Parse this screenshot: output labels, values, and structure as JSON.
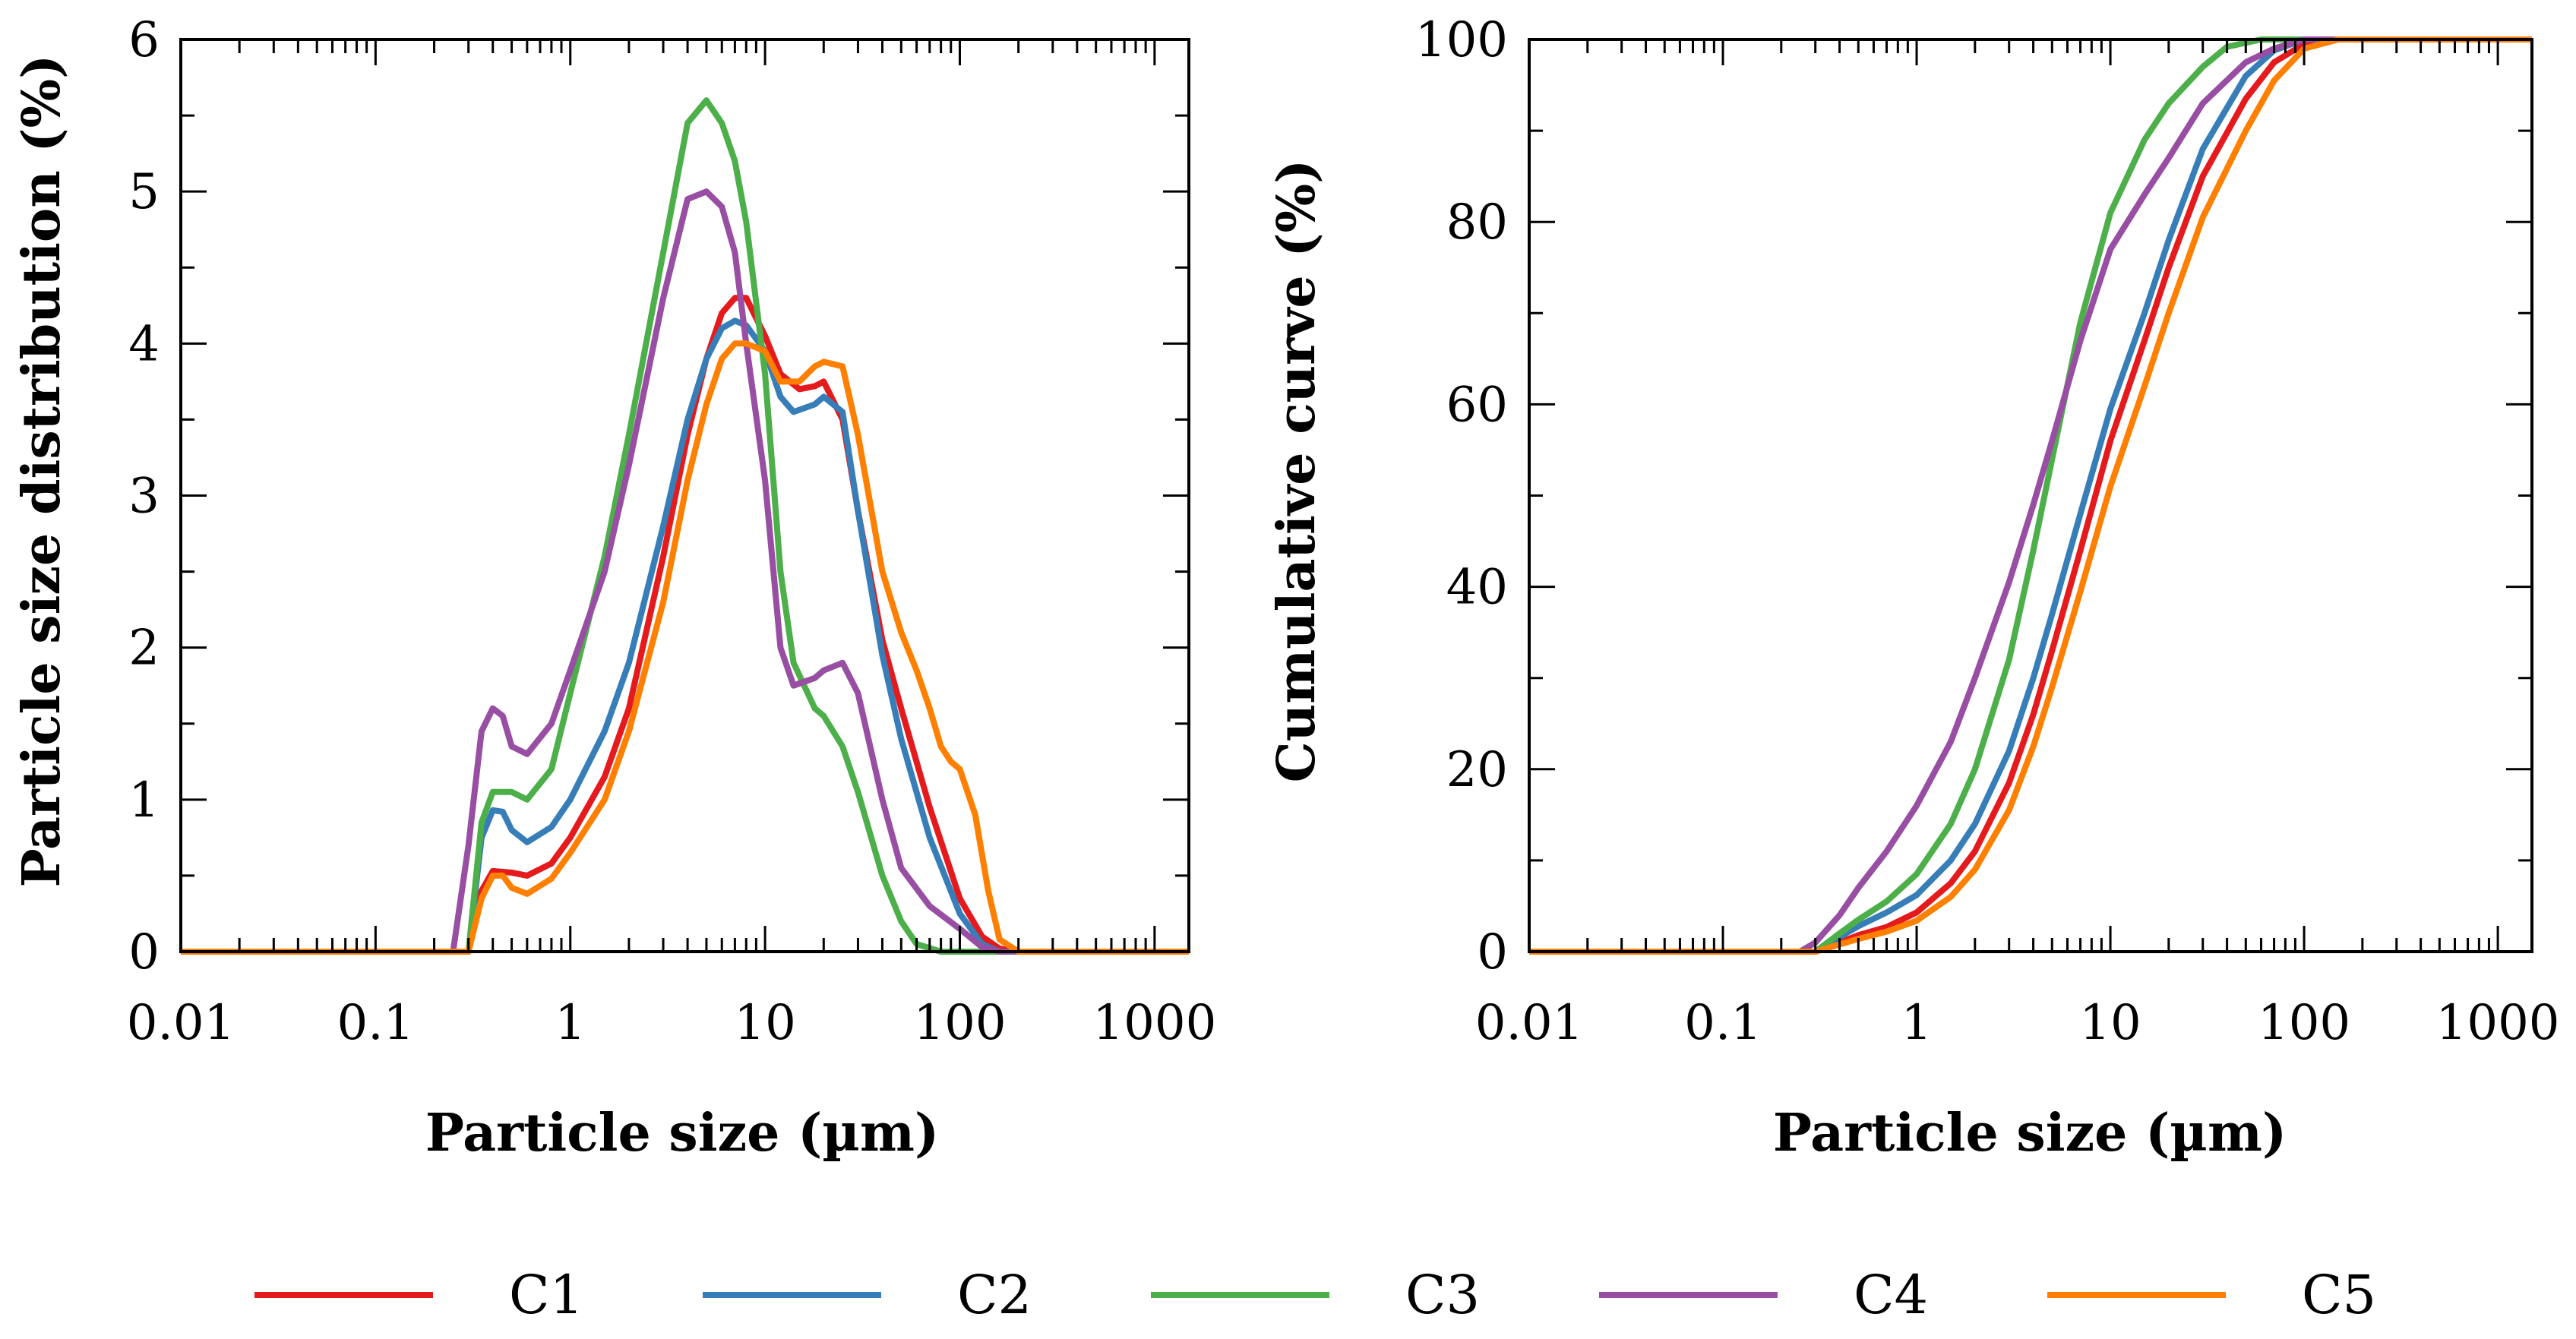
{
  "legend": [
    {
      "name": "C1",
      "color": "#e41a1c"
    },
    {
      "name": "C2",
      "color": "#377eb8"
    },
    {
      "name": "C3",
      "color": "#4daf4a"
    },
    {
      "name": "C4",
      "color": "#984ea3"
    },
    {
      "name": "C5",
      "color": "#ff7f00"
    }
  ],
  "chart_data": [
    {
      "type": "line",
      "title": "",
      "xlabel": "Particle size (µm)",
      "ylabel": "Particle size distribution (%)",
      "xscale": "log",
      "xlim": [
        0.01,
        1500
      ],
      "ylim": [
        0,
        6
      ],
      "xticks": [
        0.01,
        0.1,
        1,
        10,
        100,
        1000
      ],
      "xtick_labels": [
        "0.01",
        "0.1",
        "1",
        "10",
        "100",
        "1000"
      ],
      "yticks": [
        0,
        1,
        2,
        3,
        4,
        5,
        6
      ],
      "ytick_labels": [
        "0",
        "1",
        "2",
        "3",
        "4",
        "5",
        "6"
      ],
      "grid": false,
      "series": [
        {
          "name": "C1",
          "color": "#e41a1c",
          "points": [
            [
              0.01,
              0
            ],
            [
              0.3,
              0
            ],
            [
              0.35,
              0.4
            ],
            [
              0.4,
              0.53
            ],
            [
              0.5,
              0.52
            ],
            [
              0.6,
              0.5
            ],
            [
              0.8,
              0.58
            ],
            [
              1,
              0.75
            ],
            [
              1.5,
              1.15
            ],
            [
              2,
              1.6
            ],
            [
              3,
              2.6
            ],
            [
              4,
              3.4
            ],
            [
              5,
              3.9
            ],
            [
              6,
              4.2
            ],
            [
              7,
              4.3
            ],
            [
              8,
              4.3
            ],
            [
              10,
              4.05
            ],
            [
              12,
              3.8
            ],
            [
              15,
              3.7
            ],
            [
              18,
              3.72
            ],
            [
              20,
              3.75
            ],
            [
              25,
              3.5
            ],
            [
              30,
              2.9
            ],
            [
              40,
              2.05
            ],
            [
              50,
              1.6
            ],
            [
              70,
              0.95
            ],
            [
              100,
              0.35
            ],
            [
              130,
              0.1
            ],
            [
              160,
              0.02
            ],
            [
              200,
              0
            ],
            [
              1500,
              0
            ]
          ]
        },
        {
          "name": "C2",
          "color": "#377eb8",
          "points": [
            [
              0.01,
              0
            ],
            [
              0.3,
              0
            ],
            [
              0.35,
              0.75
            ],
            [
              0.4,
              0.93
            ],
            [
              0.45,
              0.92
            ],
            [
              0.5,
              0.8
            ],
            [
              0.6,
              0.72
            ],
            [
              0.8,
              0.82
            ],
            [
              1,
              1.0
            ],
            [
              1.5,
              1.45
            ],
            [
              2,
              1.9
            ],
            [
              3,
              2.8
            ],
            [
              4,
              3.5
            ],
            [
              5,
              3.9
            ],
            [
              6,
              4.1
            ],
            [
              7,
              4.15
            ],
            [
              8,
              4.12
            ],
            [
              10,
              3.95
            ],
            [
              12,
              3.65
            ],
            [
              14,
              3.55
            ],
            [
              18,
              3.6
            ],
            [
              20,
              3.65
            ],
            [
              25,
              3.55
            ],
            [
              30,
              2.9
            ],
            [
              40,
              1.95
            ],
            [
              50,
              1.4
            ],
            [
              70,
              0.75
            ],
            [
              100,
              0.25
            ],
            [
              130,
              0.05
            ],
            [
              160,
              0
            ],
            [
              1500,
              0
            ]
          ]
        },
        {
          "name": "C3",
          "color": "#4daf4a",
          "points": [
            [
              0.01,
              0
            ],
            [
              0.3,
              0
            ],
            [
              0.35,
              0.85
            ],
            [
              0.4,
              1.05
            ],
            [
              0.5,
              1.05
            ],
            [
              0.6,
              1.0
            ],
            [
              0.8,
              1.2
            ],
            [
              1,
              1.7
            ],
            [
              1.5,
              2.6
            ],
            [
              2,
              3.4
            ],
            [
              3,
              4.6
            ],
            [
              4,
              5.45
            ],
            [
              5,
              5.6
            ],
            [
              6,
              5.45
            ],
            [
              7,
              5.2
            ],
            [
              8,
              4.8
            ],
            [
              10,
              3.8
            ],
            [
              12,
              2.5
            ],
            [
              14,
              1.9
            ],
            [
              18,
              1.6
            ],
            [
              20,
              1.55
            ],
            [
              25,
              1.35
            ],
            [
              30,
              1.05
            ],
            [
              40,
              0.5
            ],
            [
              50,
              0.2
            ],
            [
              60,
              0.05
            ],
            [
              80,
              0
            ],
            [
              1500,
              0
            ]
          ]
        },
        {
          "name": "C4",
          "color": "#984ea3",
          "points": [
            [
              0.01,
              0
            ],
            [
              0.25,
              0
            ],
            [
              0.3,
              0.7
            ],
            [
              0.35,
              1.45
            ],
            [
              0.4,
              1.6
            ],
            [
              0.45,
              1.55
            ],
            [
              0.5,
              1.35
            ],
            [
              0.6,
              1.3
            ],
            [
              0.8,
              1.5
            ],
            [
              1,
              1.85
            ],
            [
              1.5,
              2.5
            ],
            [
              2,
              3.2
            ],
            [
              3,
              4.3
            ],
            [
              4,
              4.95
            ],
            [
              5,
              5.0
            ],
            [
              6,
              4.9
            ],
            [
              7,
              4.6
            ],
            [
              8,
              4.0
            ],
            [
              10,
              3.1
            ],
            [
              12,
              2.0
            ],
            [
              14,
              1.75
            ],
            [
              18,
              1.8
            ],
            [
              20,
              1.85
            ],
            [
              25,
              1.9
            ],
            [
              30,
              1.7
            ],
            [
              40,
              1.0
            ],
            [
              50,
              0.55
            ],
            [
              70,
              0.3
            ],
            [
              100,
              0.15
            ],
            [
              130,
              0.03
            ],
            [
              160,
              0
            ],
            [
              1500,
              0
            ]
          ]
        },
        {
          "name": "C5",
          "color": "#ff7f00",
          "points": [
            [
              0.01,
              0
            ],
            [
              0.3,
              0
            ],
            [
              0.35,
              0.35
            ],
            [
              0.4,
              0.5
            ],
            [
              0.45,
              0.5
            ],
            [
              0.5,
              0.42
            ],
            [
              0.6,
              0.38
            ],
            [
              0.8,
              0.48
            ],
            [
              1,
              0.65
            ],
            [
              1.5,
              1.0
            ],
            [
              2,
              1.45
            ],
            [
              3,
              2.3
            ],
            [
              4,
              3.1
            ],
            [
              5,
              3.6
            ],
            [
              6,
              3.9
            ],
            [
              7,
              4.0
            ],
            [
              8,
              4.0
            ],
            [
              10,
              3.95
            ],
            [
              12,
              3.75
            ],
            [
              15,
              3.75
            ],
            [
              18,
              3.85
            ],
            [
              20,
              3.88
            ],
            [
              25,
              3.85
            ],
            [
              30,
              3.4
            ],
            [
              40,
              2.5
            ],
            [
              50,
              2.1
            ],
            [
              60,
              1.85
            ],
            [
              70,
              1.6
            ],
            [
              80,
              1.35
            ],
            [
              90,
              1.25
            ],
            [
              100,
              1.2
            ],
            [
              120,
              0.9
            ],
            [
              140,
              0.4
            ],
            [
              160,
              0.08
            ],
            [
              200,
              0
            ],
            [
              1500,
              0
            ]
          ]
        }
      ]
    },
    {
      "type": "line",
      "title": "",
      "xlabel": "Particle size (µm)",
      "ylabel": "Cumulative curve (%)",
      "xscale": "log",
      "xlim": [
        0.01,
        1500
      ],
      "ylim": [
        0,
        100
      ],
      "xticks": [
        0.01,
        0.1,
        1,
        10,
        100,
        1000
      ],
      "xtick_labels": [
        "0.01",
        "0.1",
        "1",
        "10",
        "100",
        "1000"
      ],
      "yticks": [
        0,
        20,
        40,
        60,
        80,
        100
      ],
      "ytick_labels": [
        "0",
        "20",
        "40",
        "60",
        "80",
        "100"
      ],
      "grid": false,
      "series": [
        {
          "name": "C1",
          "color": "#e41a1c",
          "points": [
            [
              0.01,
              0
            ],
            [
              0.3,
              0
            ],
            [
              0.4,
              1.0
            ],
            [
              0.5,
              1.8
            ],
            [
              0.7,
              2.7
            ],
            [
              1,
              4.3
            ],
            [
              1.5,
              7.5
            ],
            [
              2,
              11
            ],
            [
              3,
              18.5
            ],
            [
              4,
              26
            ],
            [
              5,
              33
            ],
            [
              7,
              44
            ],
            [
              10,
              56
            ],
            [
              15,
              67
            ],
            [
              20,
              75
            ],
            [
              30,
              85
            ],
            [
              50,
              93.5
            ],
            [
              70,
              97.5
            ],
            [
              100,
              99.5
            ],
            [
              150,
              100
            ],
            [
              1500,
              100
            ]
          ]
        },
        {
          "name": "C2",
          "color": "#377eb8",
          "points": [
            [
              0.01,
              0
            ],
            [
              0.3,
              0
            ],
            [
              0.4,
              1.6
            ],
            [
              0.5,
              2.8
            ],
            [
              0.7,
              4.3
            ],
            [
              1,
              6.2
            ],
            [
              1.5,
              10
            ],
            [
              2,
              14
            ],
            [
              3,
              22
            ],
            [
              4,
              30
            ],
            [
              5,
              37
            ],
            [
              7,
              48
            ],
            [
              10,
              59.5
            ],
            [
              15,
              70
            ],
            [
              20,
              78
            ],
            [
              30,
              88
            ],
            [
              50,
              96
            ],
            [
              70,
              98.8
            ],
            [
              100,
              100
            ],
            [
              1500,
              100
            ]
          ]
        },
        {
          "name": "C3",
          "color": "#4daf4a",
          "points": [
            [
              0.01,
              0
            ],
            [
              0.3,
              0
            ],
            [
              0.4,
              2.0
            ],
            [
              0.5,
              3.5
            ],
            [
              0.7,
              5.5
            ],
            [
              1,
              8.5
            ],
            [
              1.5,
              14
            ],
            [
              2,
              20
            ],
            [
              3,
              32
            ],
            [
              4,
              44
            ],
            [
              5,
              54
            ],
            [
              7,
              69
            ],
            [
              10,
              81
            ],
            [
              15,
              89
            ],
            [
              20,
              93
            ],
            [
              30,
              97
            ],
            [
              40,
              99.2
            ],
            [
              60,
              100
            ],
            [
              1500,
              100
            ]
          ]
        },
        {
          "name": "C4",
          "color": "#984ea3",
          "points": [
            [
              0.01,
              0
            ],
            [
              0.25,
              0
            ],
            [
              0.3,
              1.0
            ],
            [
              0.4,
              4.0
            ],
            [
              0.5,
              7.0
            ],
            [
              0.7,
              11
            ],
            [
              1,
              16
            ],
            [
              1.5,
              23
            ],
            [
              2,
              30
            ],
            [
              3,
              40.5
            ],
            [
              4,
              49
            ],
            [
              5,
              56
            ],
            [
              7,
              67
            ],
            [
              10,
              77
            ],
            [
              15,
              83
            ],
            [
              20,
              87
            ],
            [
              30,
              93
            ],
            [
              50,
              97.5
            ],
            [
              70,
              99
            ],
            [
              100,
              100
            ],
            [
              1500,
              100
            ]
          ]
        },
        {
          "name": "C5",
          "color": "#ff7f00",
          "points": [
            [
              0.01,
              0
            ],
            [
              0.3,
              0
            ],
            [
              0.4,
              0.8
            ],
            [
              0.5,
              1.4
            ],
            [
              0.7,
              2.2
            ],
            [
              1,
              3.4
            ],
            [
              1.5,
              6
            ],
            [
              2,
              9
            ],
            [
              3,
              15.5
            ],
            [
              4,
              22.5
            ],
            [
              5,
              29
            ],
            [
              7,
              39.5
            ],
            [
              10,
              51
            ],
            [
              15,
              62
            ],
            [
              20,
              70
            ],
            [
              30,
              80.5
            ],
            [
              50,
              90
            ],
            [
              70,
              95.5
            ],
            [
              100,
              99
            ],
            [
              150,
              100
            ],
            [
              1500,
              100
            ]
          ]
        }
      ]
    }
  ]
}
